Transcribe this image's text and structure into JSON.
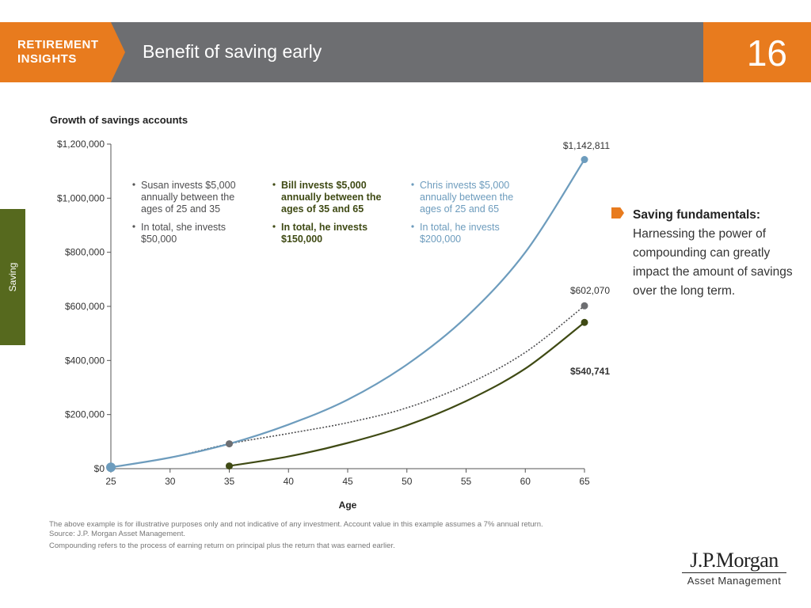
{
  "header": {
    "section_line1": "RETIREMENT",
    "section_line2": "INSIGHTS",
    "title": "Benefit of saving early",
    "page_number": "16"
  },
  "side_tab": {
    "label": "Saving"
  },
  "colors": {
    "header_gray": "#6d6e71",
    "accent_orange": "#e87b1e",
    "tab_green": "#56691e",
    "chris_blue": "#6d9cbd",
    "susan_gray": "#4d4d4f",
    "bill_green": "#3f4a14"
  },
  "chart_data": {
    "type": "line",
    "title": "Growth of savings accounts",
    "xlabel": "Age",
    "ylabel": "",
    "xlim": [
      25,
      65
    ],
    "ylim": [
      0,
      1200000
    ],
    "x_ticks": [
      "25",
      "30",
      "35",
      "40",
      "45",
      "50",
      "55",
      "60",
      "65"
    ],
    "y_ticks": [
      "$1,200,000",
      "$1,000,000",
      "$800,000",
      "$600,000",
      "$400,000",
      "$200,000",
      "$0"
    ],
    "x": [
      25,
      30,
      35,
      40,
      45,
      50,
      55,
      60,
      65
    ],
    "series": [
      {
        "key": "chris",
        "color": "#6d9cbd",
        "style": "solid",
        "x": [
          25,
          30,
          35,
          40,
          45,
          50,
          55,
          60,
          65
        ],
        "values": [
          5000,
          41000,
          92000,
          163000,
          255000,
          385000,
          560000,
          800000,
          1142811
        ]
      },
      {
        "key": "susan",
        "color": "#4d4d4f",
        "style": "dotted",
        "x": [
          25,
          30,
          35,
          40,
          45,
          50,
          55,
          60,
          65
        ],
        "values": [
          5000,
          41000,
          92000,
          130000,
          170000,
          225000,
          310000,
          430000,
          602070
        ]
      },
      {
        "key": "bill",
        "color": "#3f4a14",
        "style": "solid",
        "x": [
          35,
          40,
          45,
          50,
          55,
          60,
          65
        ],
        "values": [
          10000,
          45000,
          95000,
          160000,
          250000,
          370000,
          540741
        ]
      }
    ],
    "end_labels": [
      "$1,142,811",
      "$602,070",
      "$540,741"
    ],
    "annotations": {
      "susan": {
        "line1": "Susan invests $5,000",
        "line2": "annually between the",
        "line3": "ages of 25 and 35",
        "line4": "In total, she invests",
        "line5": "$50,000"
      },
      "bill": {
        "line1": "Bill invests $5,000",
        "line2": "annually between the",
        "line3": "ages of 35 and 65",
        "line4": "In total, he invests",
        "line5": "$150,000"
      },
      "chris": {
        "line1": "Chris invests $5,000",
        "line2": "annually between the",
        "line3": "ages of 25 and 65",
        "line4": "In total, he invests",
        "line5": "$200,000"
      }
    },
    "grid": false,
    "legend": "none"
  },
  "callout": {
    "heading": "Saving fundamentals:",
    "body": "Harnessing the power of compounding can greatly impact the amount of savings over the long term."
  },
  "footnotes": {
    "line1": "The above example is for illustrative purposes only and not indicative of any investment. Account value in this example assumes a 7% annual return.",
    "line2": "Source: J.P. Morgan Asset Management.",
    "line3": "Compounding refers to the process of earning return on principal plus the return that was earned earlier."
  },
  "logo": {
    "main": "J.P.Morgan",
    "sub": "Asset Management"
  }
}
